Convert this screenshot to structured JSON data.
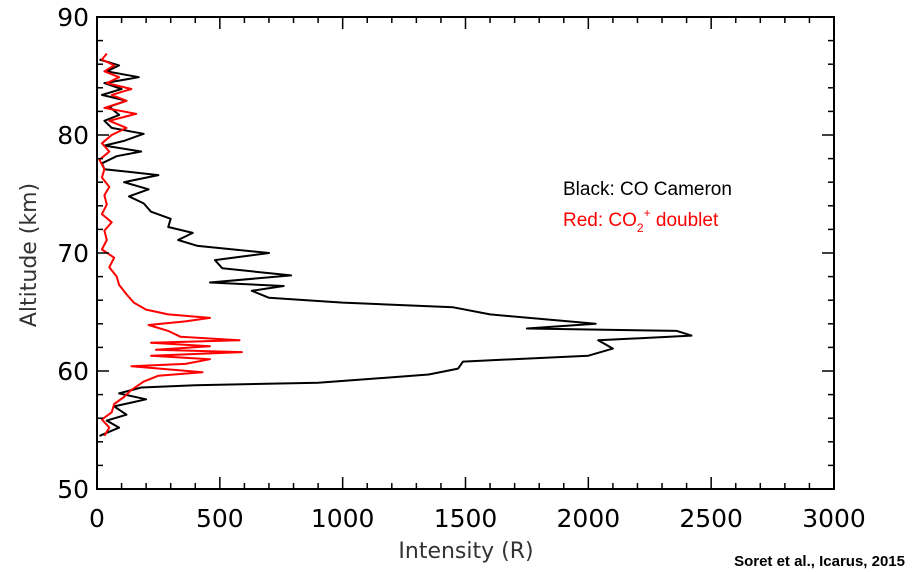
{
  "chart_data": {
    "type": "line",
    "xlabel": "Intensity (R)",
    "ylabel": "Altitude (km)",
    "xlim": [
      0,
      3000
    ],
    "ylim": [
      50,
      90
    ],
    "x_ticks": [
      0,
      500,
      1000,
      1500,
      2000,
      2500,
      3000
    ],
    "y_ticks": [
      50,
      60,
      70,
      80,
      90
    ],
    "x_tick_labels": [
      "0",
      "500",
      "1000",
      "1500",
      "2000",
      "2500",
      "3000"
    ],
    "y_tick_labels": [
      "50",
      "60",
      "70",
      "80",
      "90"
    ],
    "grid": false,
    "legend_placement": "center-right",
    "legend": {
      "black_text": "Black: CO Cameron",
      "red_prefix": "Red: CO",
      "red_sub": "2",
      "red_sup": "+",
      "red_suffix": " doublet"
    },
    "citation": "Soret et al., Icarus, 2015",
    "series": [
      {
        "color": "#000000",
        "points": [
          [
            10,
            54.5
          ],
          [
            90,
            55.2
          ],
          [
            40,
            55.8
          ],
          [
            120,
            56.3
          ],
          [
            70,
            57.0
          ],
          [
            200,
            57.6
          ],
          [
            90,
            58.1
          ],
          [
            180,
            58.6
          ],
          [
            400,
            58.8
          ],
          [
            900,
            59.0
          ],
          [
            1350,
            59.7
          ],
          [
            1470,
            60.2
          ],
          [
            1490,
            60.8
          ],
          [
            2000,
            61.3
          ],
          [
            2100,
            61.9
          ],
          [
            2040,
            62.6
          ],
          [
            2420,
            63.0
          ],
          [
            2360,
            63.4
          ],
          [
            1750,
            63.6
          ],
          [
            2030,
            64.0
          ],
          [
            1600,
            64.8
          ],
          [
            1450,
            65.4
          ],
          [
            1000,
            65.8
          ],
          [
            700,
            66.2
          ],
          [
            630,
            66.8
          ],
          [
            760,
            67.2
          ],
          [
            460,
            67.5
          ],
          [
            790,
            68.1
          ],
          [
            510,
            68.7
          ],
          [
            480,
            69.4
          ],
          [
            700,
            70.0
          ],
          [
            410,
            70.6
          ],
          [
            330,
            71.1
          ],
          [
            390,
            71.7
          ],
          [
            290,
            72.2
          ],
          [
            300,
            72.9
          ],
          [
            220,
            73.5
          ],
          [
            190,
            74.2
          ],
          [
            130,
            74.8
          ],
          [
            210,
            75.4
          ],
          [
            110,
            76.0
          ],
          [
            250,
            76.6
          ],
          [
            30,
            77.1
          ],
          [
            20,
            77.6
          ],
          [
            80,
            78.2
          ],
          [
            180,
            78.6
          ],
          [
            30,
            79.1
          ],
          [
            110,
            79.5
          ],
          [
            190,
            80.1
          ],
          [
            60,
            80.6
          ],
          [
            30,
            81.2
          ],
          [
            90,
            81.7
          ],
          [
            50,
            82.4
          ],
          [
            120,
            82.9
          ],
          [
            20,
            83.4
          ],
          [
            100,
            83.9
          ],
          [
            30,
            84.4
          ],
          [
            170,
            84.9
          ],
          [
            40,
            85.4
          ],
          [
            90,
            85.9
          ],
          [
            10,
            86.4
          ]
        ]
      },
      {
        "color": "#ff0000",
        "points": [
          [
            30,
            54.5
          ],
          [
            50,
            55.2
          ],
          [
            20,
            55.9
          ],
          [
            60,
            56.5
          ],
          [
            70,
            57.2
          ],
          [
            110,
            57.8
          ],
          [
            140,
            58.4
          ],
          [
            190,
            59.1
          ],
          [
            250,
            59.6
          ],
          [
            430,
            59.9
          ],
          [
            140,
            60.4
          ],
          [
            360,
            60.6
          ],
          [
            460,
            61.0
          ],
          [
            220,
            61.3
          ],
          [
            590,
            61.6
          ],
          [
            240,
            61.8
          ],
          [
            460,
            62.1
          ],
          [
            220,
            62.4
          ],
          [
            580,
            62.6
          ],
          [
            340,
            62.9
          ],
          [
            290,
            63.4
          ],
          [
            210,
            63.9
          ],
          [
            360,
            64.2
          ],
          [
            460,
            64.5
          ],
          [
            290,
            64.8
          ],
          [
            200,
            65.2
          ],
          [
            150,
            65.8
          ],
          [
            120,
            66.5
          ],
          [
            90,
            67.3
          ],
          [
            80,
            68.0
          ],
          [
            50,
            68.8
          ],
          [
            70,
            69.6
          ],
          [
            20,
            70.3
          ],
          [
            40,
            71.1
          ],
          [
            30,
            71.9
          ],
          [
            60,
            72.6
          ],
          [
            20,
            73.3
          ],
          [
            40,
            74.1
          ],
          [
            30,
            74.9
          ],
          [
            50,
            75.6
          ],
          [
            20,
            76.4
          ],
          [
            30,
            77.1
          ],
          [
            10,
            77.9
          ],
          [
            50,
            78.6
          ],
          [
            20,
            79.3
          ],
          [
            60,
            80.0
          ],
          [
            120,
            80.6
          ],
          [
            50,
            81.2
          ],
          [
            160,
            81.8
          ],
          [
            30,
            82.3
          ],
          [
            120,
            82.9
          ],
          [
            60,
            83.4
          ],
          [
            140,
            83.9
          ],
          [
            40,
            84.4
          ],
          [
            90,
            84.9
          ],
          [
            30,
            85.4
          ],
          [
            70,
            85.9
          ],
          [
            20,
            86.4
          ],
          [
            40,
            86.9
          ]
        ]
      }
    ]
  }
}
